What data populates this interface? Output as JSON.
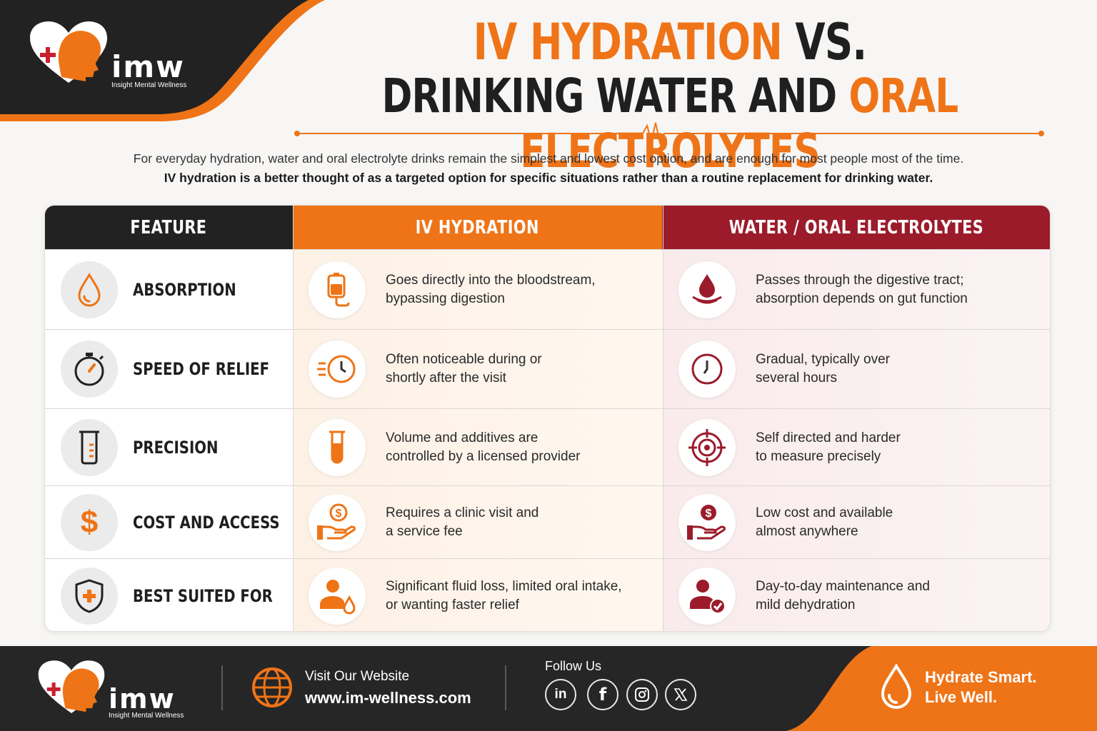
{
  "brand": {
    "logo_word": "imw",
    "logo_subtitle": "Insight Mental Wellness"
  },
  "title": {
    "line1_highlight": "IV HYDRATION",
    "line1_rest": "VS.",
    "line2_dark": "DRINKING WATER AND",
    "line2_highlight": "ORAL ELECTROLYTES"
  },
  "intro": {
    "line1": "For everyday hydration, water and oral electrolyte drinks remain the simplest and lowest cost option, and are enough for most people most of the time.",
    "line2": "IV hydration is a better thought of as a targeted option for specific situations rather than a routine replacement for drinking water."
  },
  "table": {
    "headers": [
      "FEATURE",
      "IV HYDRATION",
      "WATER / ORAL ELECTROLYTES"
    ],
    "rows": [
      {
        "feature": "ABSORPTION",
        "feature_icon": "water-drop-icon",
        "iv": "Goes directly into the bloodstream,\nbypassing digestion",
        "iv_icon": "iv-bag-icon",
        "oral": "Passes through the digestive tract;\nabsorption depends on gut function",
        "oral_icon": "drop-ripple-icon"
      },
      {
        "feature": "SPEED OF RELIEF",
        "feature_icon": "stopwatch-icon",
        "iv": "Often noticeable during or\nshortly after the visit",
        "iv_icon": "fast-clock-icon",
        "oral": "Gradual, typically over\nseveral hours",
        "oral_icon": "clock-icon"
      },
      {
        "feature": "PRECISION",
        "feature_icon": "beaker-icon",
        "iv": "Volume and additives are\ncontrolled by a licensed provider",
        "iv_icon": "test-tube-icon",
        "oral": "Self directed and harder\nto measure precisely",
        "oral_icon": "target-icon"
      },
      {
        "feature": "COST AND ACCESS",
        "feature_icon": "dollar-icon",
        "iv": "Requires a clinic visit and\na service fee",
        "iv_icon": "hand-coin-icon",
        "oral": "Low cost and available\nalmost anywhere",
        "oral_icon": "hand-coin-icon"
      },
      {
        "feature": "BEST SUITED FOR",
        "feature_icon": "shield-plus-icon",
        "iv": "Significant fluid loss, limited oral intake,\nor wanting faster relief",
        "iv_icon": "person-drop-icon",
        "oral": "Day-to-day maintenance and\nmild dehydration",
        "oral_icon": "person-check-icon"
      }
    ]
  },
  "footer": {
    "visit_label": "Visit Our Website",
    "website": "www.im-wellness.com",
    "follow_label": "Follow Us",
    "social": [
      "linkedin-icon",
      "facebook-icon",
      "instagram-icon",
      "x-icon"
    ],
    "tagline_line1": "Hydrate Smart.",
    "tagline_line2": "Live Well."
  },
  "colors": {
    "orange": "#ee7417",
    "maroon": "#9b1b2b",
    "dark": "#222222"
  }
}
